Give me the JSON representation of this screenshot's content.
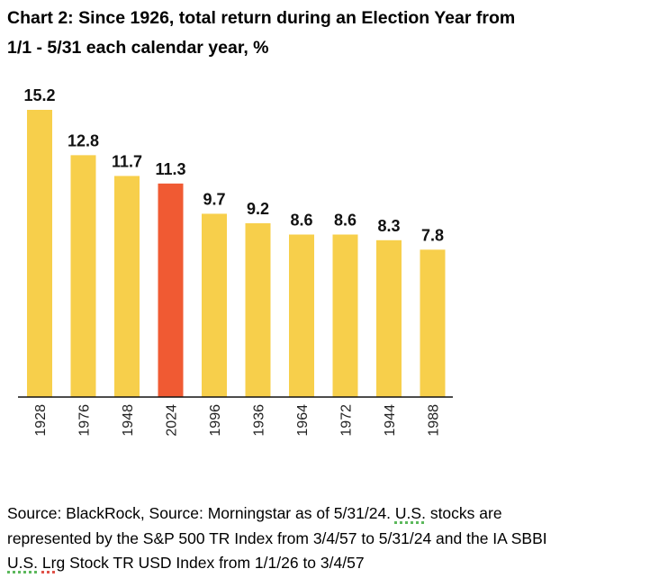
{
  "chart_data": {
    "type": "bar",
    "title_line1": "Chart 2: Since 1926, total return during an Election Year from",
    "title_line2": "1/1 - 5/31 each calendar year, %",
    "categories": [
      "1928",
      "1976",
      "1948",
      "2024",
      "1996",
      "1936",
      "1964",
      "1972",
      "1944",
      "1988"
    ],
    "values": [
      15.2,
      12.8,
      11.7,
      11.3,
      9.7,
      9.2,
      8.6,
      8.6,
      8.3,
      7.8
    ],
    "value_labels": [
      "15.2",
      "12.8",
      "11.7",
      "11.3",
      "9.7",
      "9.2",
      "8.6",
      "8.6",
      "8.3",
      "7.8"
    ],
    "highlight_category": "2024",
    "xlabel": "",
    "ylabel": "",
    "ylim": [
      0,
      15.2
    ],
    "grid": false,
    "colors": {
      "bar": "#f7cf4b",
      "highlight": "#f05a33",
      "axis": "#111111"
    }
  },
  "source": {
    "line1_a": "Source: BlackRock, Source: Morningstar as of 5/31/24. ",
    "line1_b": "U.S.",
    "line1_c": " stocks are",
    "line2": "represented by the S&P 500 TR Index from 3/4/57 to 5/31/24 and the IA SBBI",
    "line3_a": "U.S.",
    "line3_b": " ",
    "line3_c": "Lrg",
    "line3_d": " Stock TR USD Index from 1/1/26 to 3/4/57"
  }
}
